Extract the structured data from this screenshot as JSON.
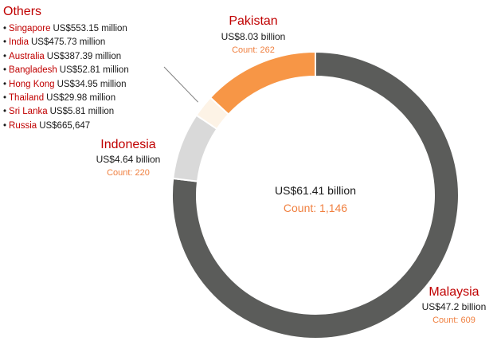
{
  "chart_data": {
    "type": "donut",
    "center": {
      "amount": "US$61.41 billion",
      "count": "Count: 1,146"
    },
    "slices": [
      {
        "name": "Malaysia",
        "amount": "US$47.2 billion",
        "count": "Count: 609",
        "value": 47.2,
        "color": "#5b5c5a"
      },
      {
        "name": "Indonesia",
        "amount": "US$4.64 billion",
        "count": "Count: 220",
        "value": 4.64,
        "color": "#d9d9d9"
      },
      {
        "name": "Others",
        "amount": "",
        "count": "",
        "value": 1.54,
        "color": "#fdf3e6"
      },
      {
        "name": "Pakistan",
        "amount": "US$8.03 billion",
        "count": "Count: 262",
        "value": 8.03,
        "color": "#f79646"
      }
    ],
    "others": {
      "title": "Others",
      "items": [
        {
          "country": "Singapore",
          "amount": "US$553.15 million"
        },
        {
          "country": "India",
          "amount": "US$475.73 million"
        },
        {
          "country": "Australia",
          "amount": "US$387.39 million"
        },
        {
          "country": "Bangladesh",
          "amount": "US$52.81 million"
        },
        {
          "country": "Hong Kong",
          "amount": "US$34.95 million"
        },
        {
          "country": "Thailand",
          "amount": "US$29.98 million"
        },
        {
          "country": "Sri Lanka",
          "amount": "US$5.81 million"
        },
        {
          "country": "Russia",
          "amount": "US$665,647"
        }
      ]
    }
  }
}
